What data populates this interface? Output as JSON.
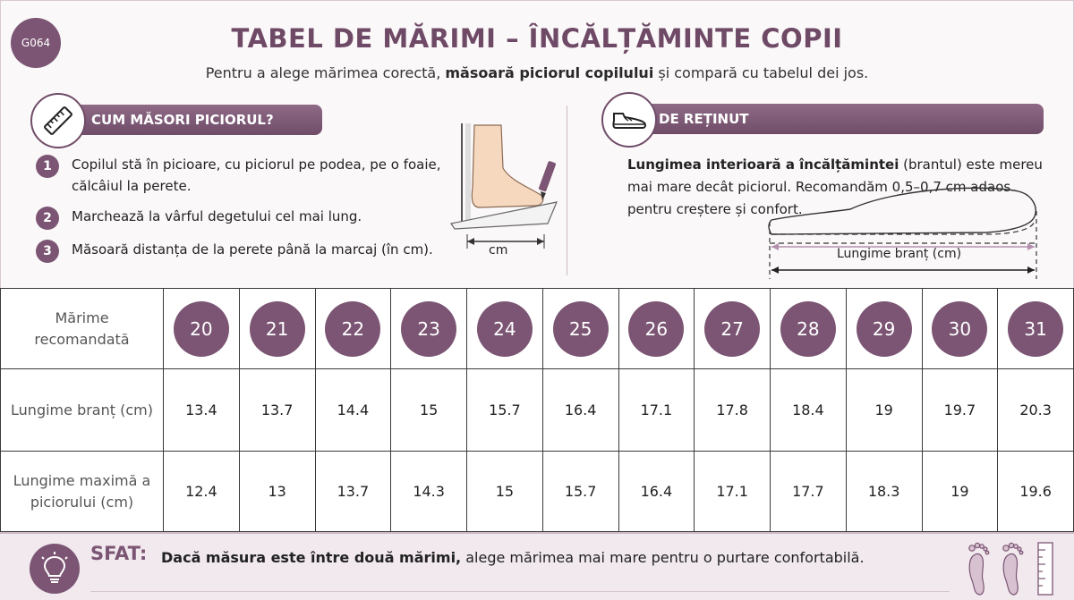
{
  "badge_code": "G064",
  "title": "TABEL DE MĂRIMI – ÎNCĂLȚĂMINTE COPII",
  "subtitle": {
    "before": "Pentru a alege mărimea corectă, ",
    "bold": "măsoară piciorul copilului",
    "after": " și compară cu tabelul dei jos."
  },
  "measure_section": {
    "heading": "CUM MĂSORI PICIORUL?",
    "icon": "ruler-icon",
    "steps": [
      {
        "num": "1",
        "text": "Copilul stă în picioare, cu piciorul pe podea, pe o foaie, călcâiul la perete."
      },
      {
        "num": "2",
        "text": "Marchează la vârful degetului cel mai lung."
      },
      {
        "num": "3",
        "text": "Măsoară distanța de la perete până la marcaj (în cm)."
      }
    ],
    "illustration_label": "cm"
  },
  "remember_section": {
    "heading": "DE REȚINUT",
    "icon": "shoe-icon",
    "note_bold": "Lungimea interioară a încălțămintei",
    "note_rest": " (brantul) este mereu mai mare decât piciorul. Recomandăm 0,5–0,7 cm adaos pentru creștere și confort.",
    "insole_label": "Lungime branț (cm)"
  },
  "table": {
    "row_labels": {
      "size": "Mărime recomandată",
      "insole": "Lungime branț (cm)",
      "foot": "Lungime maximă a piciorului (cm)"
    },
    "sizes": [
      "20",
      "21",
      "22",
      "23",
      "24",
      "25",
      "26",
      "27",
      "28",
      "29",
      "30",
      "31"
    ],
    "insole_cm": [
      "13.4",
      "13.7",
      "14.4",
      "15",
      "15.7",
      "16.4",
      "17.1",
      "17.8",
      "18.4",
      "19",
      "19.7",
      "20.3"
    ],
    "foot_cm": [
      "12.4",
      "13",
      "13.7",
      "14.3",
      "15",
      "15.7",
      "16.4",
      "17.1",
      "17.7",
      "18.3",
      "19",
      "19.6"
    ]
  },
  "tip": {
    "label": "SFAT:",
    "bold": "Dacă măsura este între două mărimi,",
    "rest": " alege mărimea mai mare pentru o purtare confortabilă.",
    "icon": "lightbulb-icon"
  },
  "colors": {
    "accent": "#7b5573",
    "accent_dark": "#6f4c68",
    "tip_bg": "#f1e9ee"
  }
}
